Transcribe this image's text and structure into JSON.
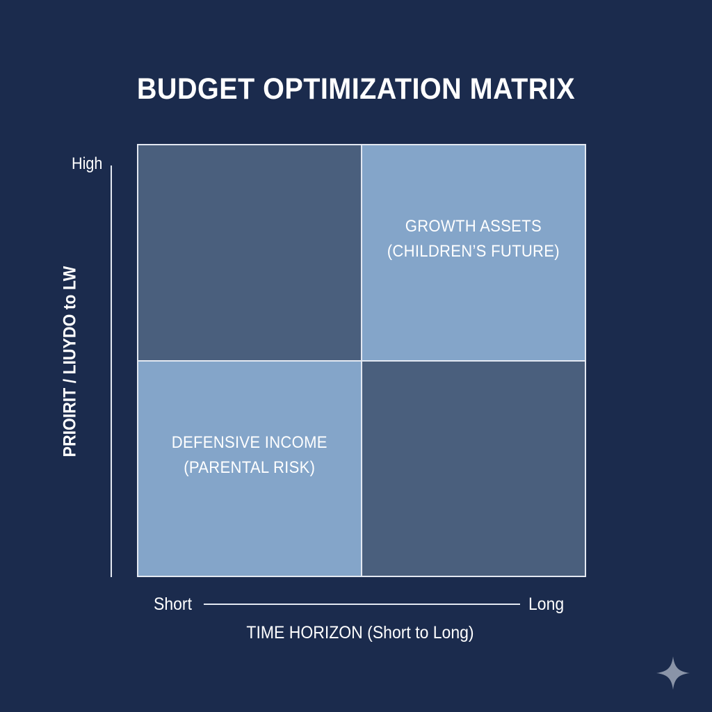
{
  "title": "BUDGET OPTIMIZATION MATRIX",
  "y_axis": {
    "label": "PRIOIRIT / LIUYDO to LW",
    "high": "High"
  },
  "x_axis": {
    "label": "TIME HORIZON (Short to Long)",
    "short": "Short",
    "long": "Long"
  },
  "quadrants": {
    "top_left": {
      "line1": "",
      "line2": "",
      "color": "#4a5f7d"
    },
    "top_right": {
      "line1": "GROWTH ASSETS",
      "line2": "(CHILDREN’S FUTURE)",
      "color": "#84a5c9"
    },
    "bottom_left": {
      "line1": "DEFENSIVE INCOME",
      "line2": "(PARENTAL RISK)",
      "color": "#84a5c9"
    },
    "bottom_right": {
      "line1": "",
      "line2": "",
      "color": "#4a5f7d"
    }
  },
  "colors": {
    "background": "#1b2b4d",
    "grid_line": "#e4e9f2",
    "text": "#ffffff"
  },
  "icons": {
    "corner": "sparkle-icon"
  }
}
